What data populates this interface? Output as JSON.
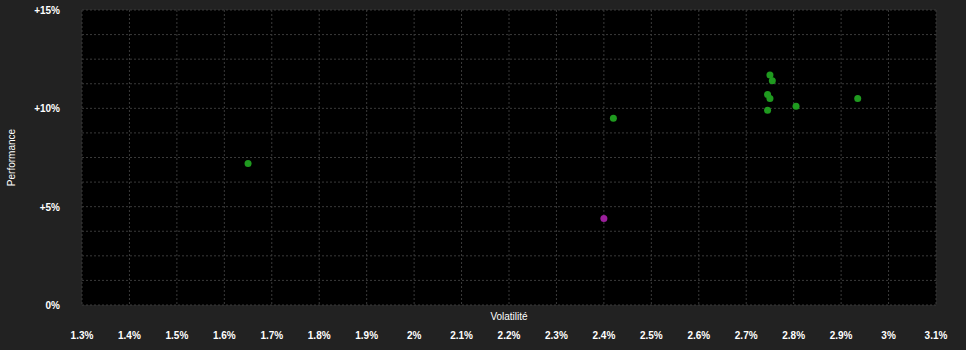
{
  "chart_data": {
    "type": "scatter",
    "x_label": "Volatilité",
    "y_label": "Performance",
    "x": [
      1.65,
      2.42,
      2.75,
      2.755,
      2.745,
      2.75,
      2.745,
      2.805,
      2.935,
      2.4
    ],
    "values": [
      7.2,
      9.5,
      11.7,
      11.4,
      10.7,
      10.5,
      9.9,
      10.1,
      10.5,
      4.4
    ],
    "colors": [
      "#1f9a1f",
      "#1f9a1f",
      "#1f9a1f",
      "#1f9a1f",
      "#1f9a1f",
      "#1f9a1f",
      "#1f9a1f",
      "#1f9a1f",
      "#1f9a1f",
      "#9b1f9b"
    ],
    "marker": "circle",
    "xlim": [
      1.3,
      3.1
    ],
    "ylim": [
      0,
      15
    ],
    "xticks": [
      {
        "value": 1.3,
        "label": "1.3%"
      },
      {
        "value": 1.4,
        "label": "1.4%"
      },
      {
        "value": 1.5,
        "label": "1.5%"
      },
      {
        "value": 1.6,
        "label": "1.6%"
      },
      {
        "value": 1.7,
        "label": "1.7%"
      },
      {
        "value": 1.8,
        "label": "1.8%"
      },
      {
        "value": 1.9,
        "label": "1.9%"
      },
      {
        "value": 2.0,
        "label": "2%"
      },
      {
        "value": 2.1,
        "label": "2.1%"
      },
      {
        "value": 2.2,
        "label": "2.2%"
      },
      {
        "value": 2.3,
        "label": "2.3%"
      },
      {
        "value": 2.4,
        "label": "2.4%"
      },
      {
        "value": 2.5,
        "label": "2.5%"
      },
      {
        "value": 2.6,
        "label": "2.6%"
      },
      {
        "value": 2.7,
        "label": "2.7%"
      },
      {
        "value": 2.8,
        "label": "2.8%"
      },
      {
        "value": 2.9,
        "label": "2.9%"
      },
      {
        "value": 3.0,
        "label": "3%"
      },
      {
        "value": 3.1,
        "label": "3.1%"
      }
    ],
    "yticks": [
      {
        "value": 0,
        "label": "0%"
      },
      {
        "value": 5,
        "label": "+5%"
      },
      {
        "value": 10,
        "label": "+10%"
      },
      {
        "value": 15,
        "label": "+15%"
      }
    ],
    "grid": true
  }
}
